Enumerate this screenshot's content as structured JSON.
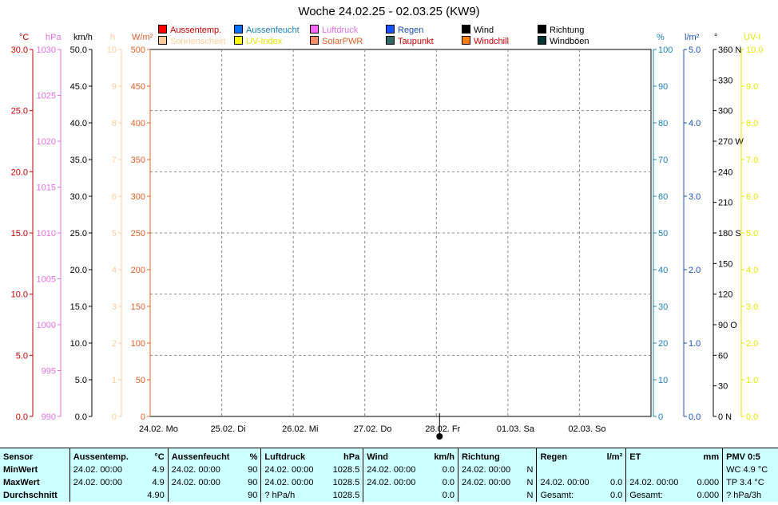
{
  "chart_data": {
    "type": "line",
    "title": "Woche 24.02.25 - 02.03.25 (KW9)",
    "x_ticks": [
      "24.02.  Mo",
      "25.02.  Di",
      "26.02.  Mi",
      "27.02.  Do",
      "28.02.  Fr",
      "01.03.  Sa",
      "02.03.  So"
    ],
    "marker_day": "28.02.",
    "series": [
      {
        "name": "Aussentemp.",
        "color": "#ff0000",
        "values": []
      },
      {
        "name": "Aussenfeucht",
        "color": "#0070ff",
        "values": []
      },
      {
        "name": "Luftdruck",
        "color": "#ff66ff",
        "values": []
      },
      {
        "name": "Regen",
        "color": "#1a4fff",
        "values": []
      },
      {
        "name": "Wind",
        "color": "#000000",
        "values": []
      },
      {
        "name": "Richtung",
        "color": "#000000",
        "values": []
      },
      {
        "name": "Sonnenschein",
        "color": "#ffcc99",
        "values": []
      },
      {
        "name": "UV-Index",
        "color": "#ffff00",
        "values": []
      },
      {
        "name": "SolarPWR",
        "color": "#ff8c66",
        "values": []
      },
      {
        "name": "Taupunkt",
        "color": "#336666",
        "values": []
      },
      {
        "name": "Windchill",
        "color": "#ff7f00",
        "values": []
      },
      {
        "name": "Windböen",
        "color": "#003333",
        "values": []
      }
    ],
    "axes": {
      "temp": {
        "unit": "°C",
        "color": "#cc0000",
        "ticks": [
          "30.0",
          "25.0",
          "20.0",
          "15.0",
          "10.0",
          "5.0",
          "0.0"
        ]
      },
      "press": {
        "unit": "hPa",
        "color": "#e070e0",
        "ticks": [
          "1030",
          "1025",
          "1020",
          "1015",
          "1010",
          "1005",
          "1000",
          "995",
          "990"
        ]
      },
      "wind": {
        "unit": "km/h",
        "color": "#000000",
        "ticks": [
          "50.0",
          "45.0",
          "40.0",
          "35.0",
          "30.0",
          "25.0",
          "20.0",
          "15.0",
          "10.0",
          "5.0",
          "0.0"
        ]
      },
      "sun": {
        "unit": "h",
        "color": "#ffcc99",
        "ticks": [
          "10",
          "9",
          "8",
          "7",
          "6",
          "5",
          "4",
          "3",
          "2",
          "1",
          "0"
        ]
      },
      "solar": {
        "unit": "W/m²",
        "color": "#e0602a",
        "ticks": [
          "500",
          "450",
          "400",
          "350",
          "300",
          "250",
          "200",
          "150",
          "100",
          "50",
          "0"
        ]
      },
      "hum": {
        "unit": "%",
        "color": "#1a7fb0",
        "ticks": [
          "100",
          "90",
          "80",
          "70",
          "60",
          "50",
          "40",
          "30",
          "20",
          "10",
          "0"
        ]
      },
      "rain": {
        "unit": "l/m²",
        "color": "#1a4fb0",
        "ticks": [
          "5.0",
          "4.0",
          "3.0",
          "2.0",
          "1.0",
          "0.0"
        ]
      },
      "dir": {
        "unit": "°",
        "color": "#000000",
        "ticks": [
          "360",
          "330",
          "300",
          "270",
          "240",
          "210",
          "180",
          "150",
          "120",
          "90",
          "60",
          "30",
          "0"
        ],
        "labels": {
          "360": "N",
          "270": "W",
          "180": "S",
          "90": "O",
          "0": "N"
        }
      },
      "uv": {
        "unit": "UV-I",
        "color": "#e6e600",
        "ticks": [
          "10.0",
          "9.0",
          "8.0",
          "7.0",
          "6.0",
          "5.0",
          "4.0",
          "3.0",
          "2.0",
          "1.0",
          "0.0"
        ]
      }
    }
  },
  "stats": {
    "headers": {
      "sensor": "Sensor",
      "temp": "Aussentemp.",
      "temp_u": "°C",
      "hum": "Aussenfeucht",
      "hum_u": "%",
      "press": "Luftdruck",
      "press_u": "hPa",
      "wind": "Wind",
      "wind_u": "km/h",
      "dir": "Richtung",
      "rain": "Regen",
      "rain_u": "l/m²",
      "et": "ET",
      "et_u": "mm",
      "pmv": "PMV 0:5"
    },
    "min": {
      "label": "MinWert",
      "temp_t": "24.02.  00:00",
      "temp_v": "4.9",
      "hum_t": "24.02.  00:00",
      "hum_v": "90",
      "press_t": "24.02.  00:00",
      "press_v": "1028.5",
      "wind_t": "24.02.  00:00",
      "wind_v": "0.0",
      "dir_t": "24.02.  00:00",
      "dir_v": "N",
      "pmv": "WC 4.9 °C"
    },
    "max": {
      "label": "MaxWert",
      "temp_t": "24.02.  00:00",
      "temp_v": "4.9",
      "hum_t": "24.02.  00:00",
      "hum_v": "90",
      "press_t": "24.02.  00:00",
      "press_v": "1028.5",
      "wind_t": "24.02.  00:00",
      "wind_v": "0.0",
      "dir_t": "24.02.  00:00",
      "dir_v": "N",
      "rain_t": "24.02.  00:00",
      "rain_v": "0.0",
      "et_t": "24.02.  00:00",
      "et_v": "0.000",
      "pmv": "TP 3.4 °C"
    },
    "avg": {
      "label": "Durchschnitt",
      "temp_v": "4.90",
      "hum_v": "90",
      "press_t": "? hPa/h",
      "press_v": "1028.5",
      "wind_v": "0.0",
      "dir_v": "N",
      "rain_t": "Gesamt:",
      "rain_v": "0.0",
      "et_t": "Gesamt:",
      "et_v": "0.000",
      "pmv": "? hPa/3h"
    }
  }
}
